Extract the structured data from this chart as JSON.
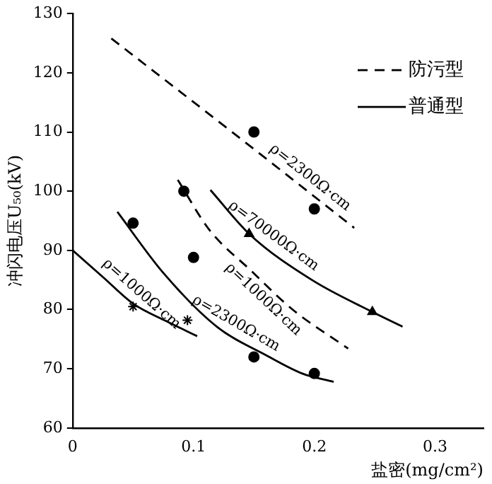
{
  "chart_data": {
    "type": "line",
    "xlabel": "盐密(mg/cm²)",
    "ylabel": "冲闪电压U₅₀(kV)",
    "xlim": [
      0,
      0.34
    ],
    "xticks": [
      0,
      0.1,
      0.2,
      0.3
    ],
    "ylim": [
      60,
      130
    ],
    "yticks": [
      60,
      70,
      80,
      90,
      100,
      110,
      120,
      130
    ],
    "grid": false,
    "legend": "top right",
    "series": [
      {
        "name": "防污型",
        "color": "#000000",
        "line_style": "dashed",
        "marker": "none",
        "x": [
          0.032,
          0.13,
          0.233
        ],
        "values": [
          125.8,
          110.3,
          93.8
        ]
      },
      {
        "color": "#000000",
        "line_style": "dashed",
        "marker": "none",
        "x": [
          0.087,
          0.113,
          0.148,
          0.182,
          0.228
        ],
        "values": [
          101.9,
          93.5,
          86.5,
          80,
          73.4
        ]
      },
      {
        "name": "普通型",
        "color": "#000000",
        "line_style": "solid",
        "marker": "none",
        "x": [
          0.114,
          0.146,
          0.198,
          0.248,
          0.273
        ],
        "values": [
          100.2,
          92.8,
          85,
          79.6,
          77.1
        ]
      },
      {
        "color": "#000000",
        "line_style": "solid",
        "marker": "none",
        "x": [
          0.037,
          0.075,
          0.12,
          0.16,
          0.19,
          0.216
        ],
        "values": [
          96.5,
          86.2,
          77,
          72.3,
          69.2,
          67.8
        ]
      },
      {
        "color": "#000000",
        "line_style": "solid",
        "marker": "none",
        "x": [
          0,
          0.025,
          0.05,
          0.078,
          0.103
        ],
        "values": [
          90,
          85.5,
          81,
          78,
          75.5
        ]
      },
      {
        "type": "scatter",
        "color": "#000000",
        "marker": "circle",
        "x": [
          0.15,
          0.2,
          0.05,
          0.1,
          0.15,
          0.2,
          0.092
        ],
        "values": [
          110,
          97,
          94.6,
          88.8,
          72,
          69.2,
          100
        ]
      },
      {
        "type": "scatter",
        "color": "#000000",
        "marker": "triangle",
        "x": [
          0.146,
          0.248
        ],
        "values": [
          92.8,
          79.6
        ]
      },
      {
        "type": "scatter",
        "color": "#000000",
        "marker": "cross",
        "x": [
          0.05,
          0.095
        ],
        "values": [
          80.5,
          78.2
        ]
      }
    ],
    "annotations": [
      {
        "text": "ρ=2300Ω·cm",
        "x": 0.19,
        "y": 100.6
      },
      {
        "text": "ρ=70000Ω·cm",
        "x": 0.16,
        "y": 90.7
      },
      {
        "text": "ρ=1000Ω·cm",
        "x": 0.165,
        "y": 83.3
      },
      {
        "text": "ρ=2300Ω·cm",
        "x": 0.13,
        "y": 75.8
      },
      {
        "text": "ρ=1000Ω·cm",
        "x": 0.05,
        "y": 81
      }
    ]
  }
}
